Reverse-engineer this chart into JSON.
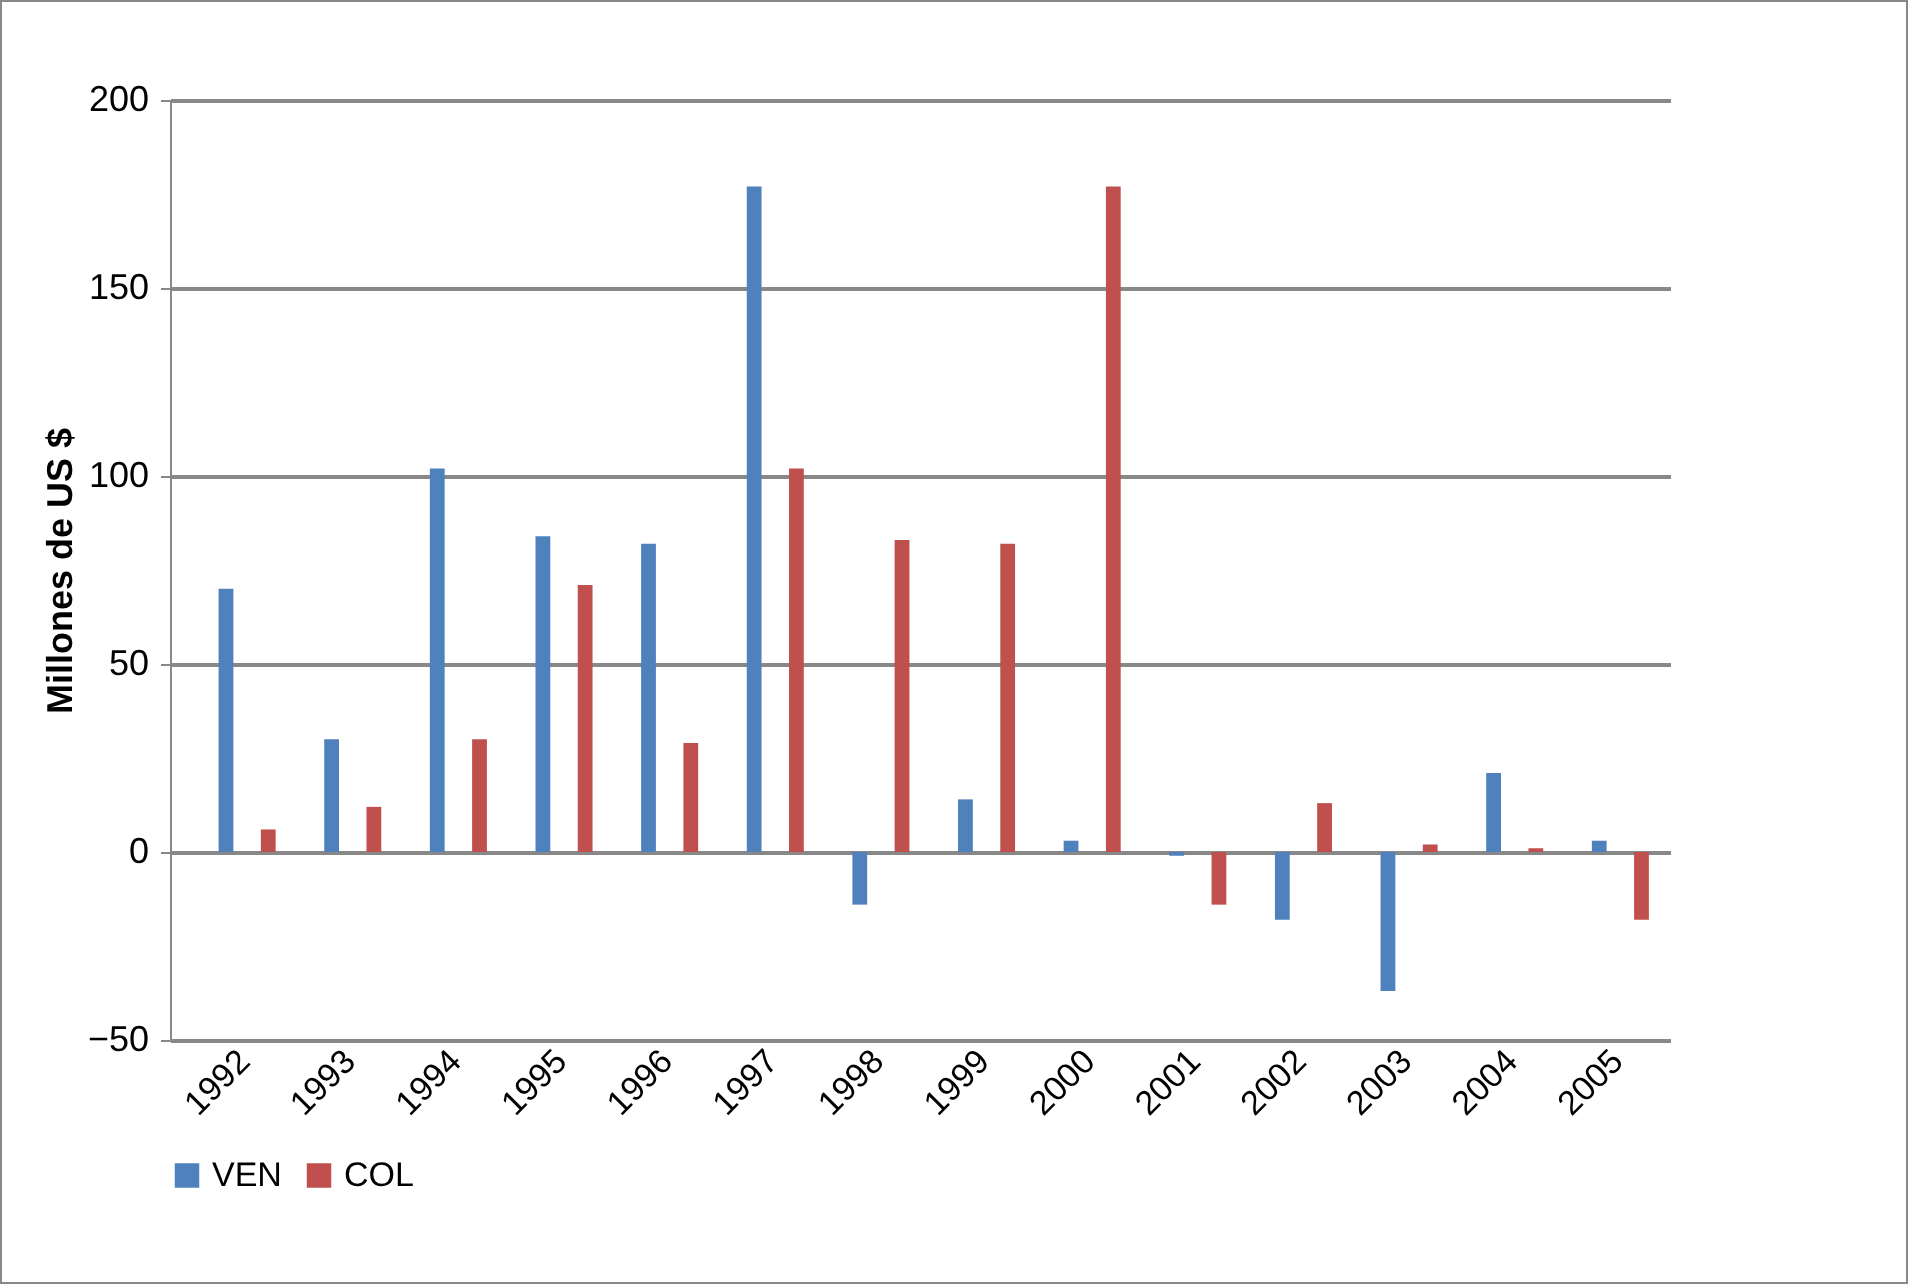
{
  "chart_data": {
    "type": "bar",
    "ylabel": "Millones de US $",
    "categories": [
      "1992",
      "1993",
      "1994",
      "1995",
      "1996",
      "1997",
      "1998",
      "1999",
      "2000",
      "2001",
      "2002",
      "2003",
      "2004",
      "2005"
    ],
    "series": [
      {
        "name": "VEN",
        "color": "#4f81bd",
        "values": [
          70,
          30,
          102,
          84,
          82,
          177,
          -14,
          14,
          3,
          -1,
          -18,
          -37,
          21,
          3
        ]
      },
      {
        "name": "COL",
        "color": "#c0504d",
        "values": [
          6,
          12,
          30,
          71,
          29,
          102,
          83,
          82,
          177,
          -14,
          13,
          2,
          1,
          -18
        ]
      }
    ],
    "ylim": [
      -50,
      200
    ],
    "yticks": [
      -50,
      0,
      50,
      100,
      150,
      200
    ],
    "grid": "y",
    "legend": "bottom"
  }
}
